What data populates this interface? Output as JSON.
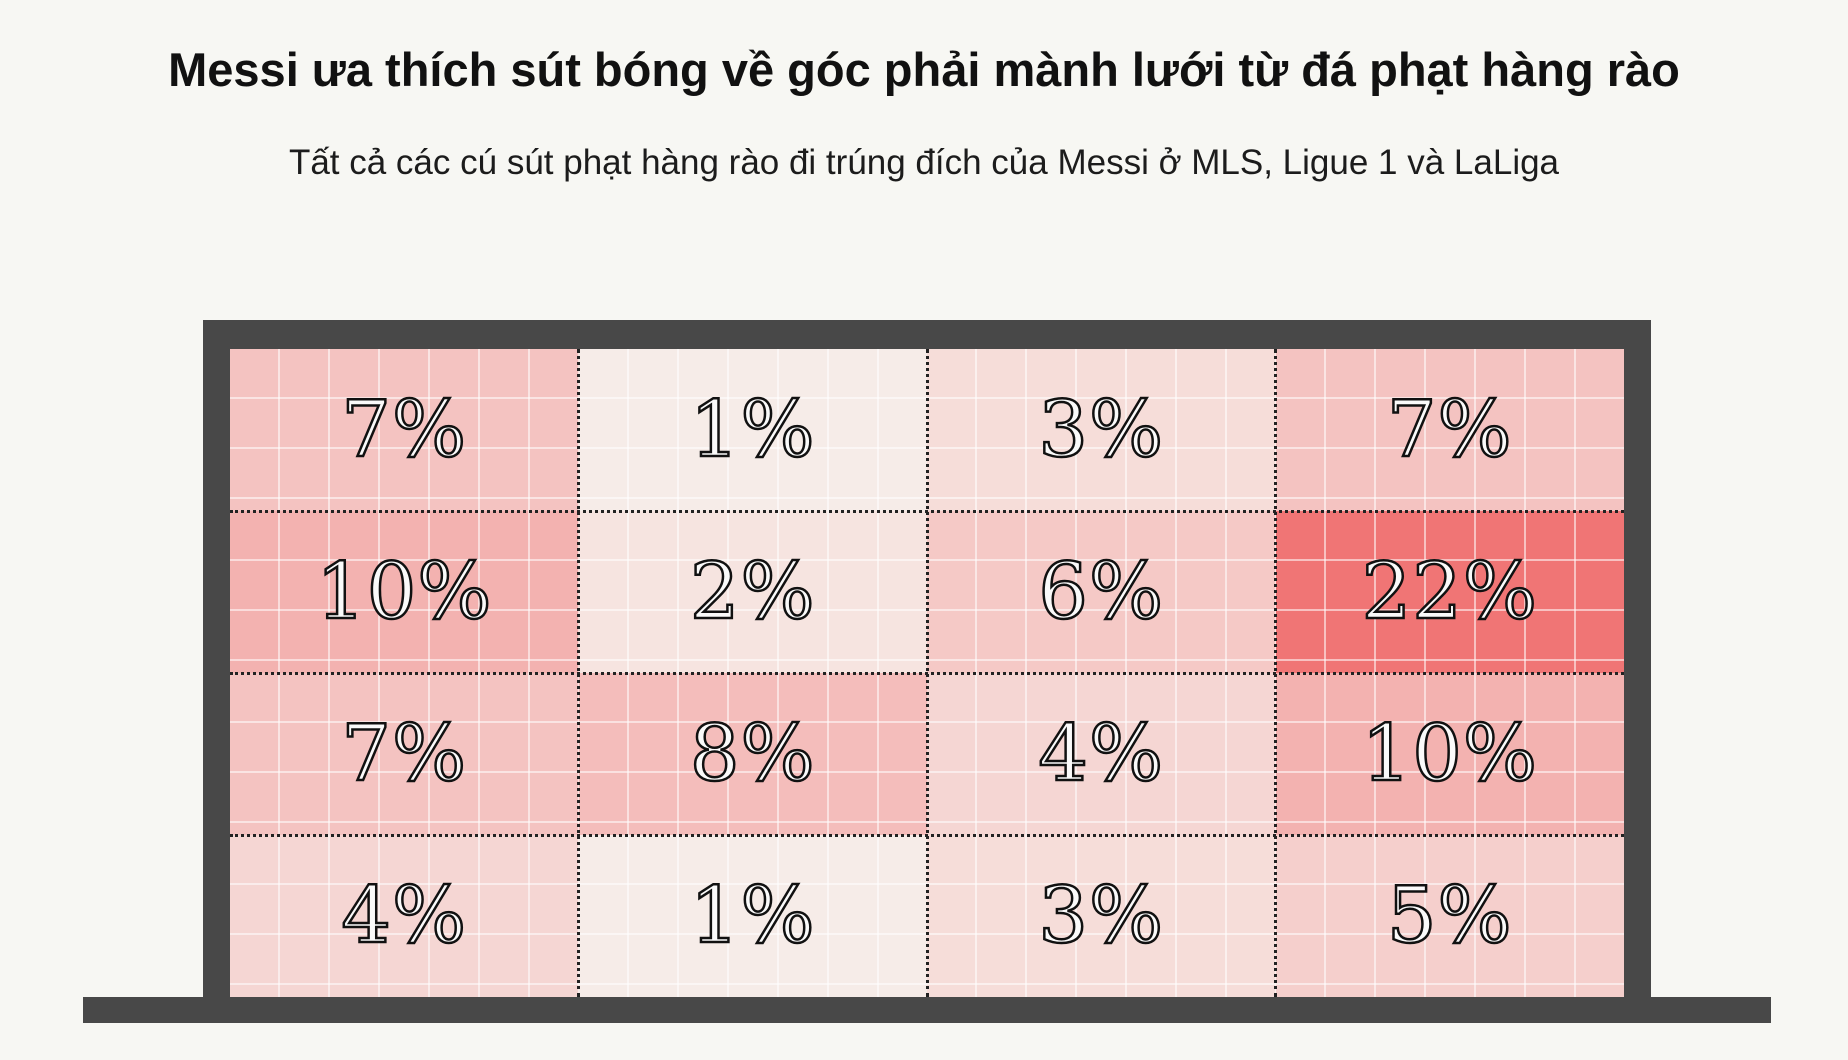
{
  "title": "Messi ưa thích sút bóng về góc phải mành lưới từ đá phạt hàng rào",
  "subtitle": "Tất cả các cú sút phạt hàng rào đi trúng đích của Messi ở MLS, Ligue 1 và LaLiga",
  "colors": {
    "background": "#f7f7f3",
    "goal_frame": "#484848",
    "low": "#f7f7f3",
    "high": "#f07575"
  },
  "chart_data": {
    "type": "heatmap",
    "title": "Messi ưa thích sút bóng về góc phải mành lưới từ đá phạt hàng rào",
    "subtitle": "Tất cả các cú sút phạt hàng rào đi trúng đích của Messi ở MLS, Ligue 1 và LaLiga",
    "rows": 4,
    "cols": 4,
    "values": [
      [
        7,
        1,
        3,
        7
      ],
      [
        10,
        2,
        6,
        22
      ],
      [
        7,
        8,
        4,
        10
      ],
      [
        4,
        1,
        3,
        5
      ]
    ],
    "labels": [
      [
        "7%",
        "1%",
        "3%",
        "7%"
      ],
      [
        "10%",
        "2%",
        "6%",
        "22%"
      ],
      [
        "7%",
        "8%",
        "4%",
        "10%"
      ],
      [
        "4%",
        "1%",
        "3%",
        "5%"
      ]
    ],
    "unit": "%",
    "value_range": [
      0,
      22
    ],
    "grid": true
  }
}
